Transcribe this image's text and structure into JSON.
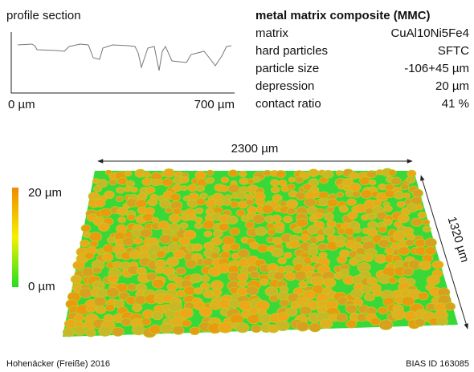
{
  "profile": {
    "title": "profile section",
    "x_start": "0 µm",
    "x_end": "700 µm"
  },
  "specs": {
    "title": "metal matrix composite (MMC)",
    "rows": [
      [
        "matrix",
        "CuAl10Ni5Fe4"
      ],
      [
        "hard particles",
        "SFTC"
      ],
      [
        "particle size",
        "-106+45 µm"
      ],
      [
        "depression",
        "20 µm"
      ],
      [
        "contact ratio",
        "41 %"
      ]
    ]
  },
  "surface": {
    "width_label": "2300 µm",
    "depth_label": "1320 µm",
    "scale_max": "20 µm",
    "scale_min": "0 µm"
  },
  "footer": {
    "credit": "Hohenäcker (Freiße) 2016",
    "id": "BIAS ID 163085"
  }
}
